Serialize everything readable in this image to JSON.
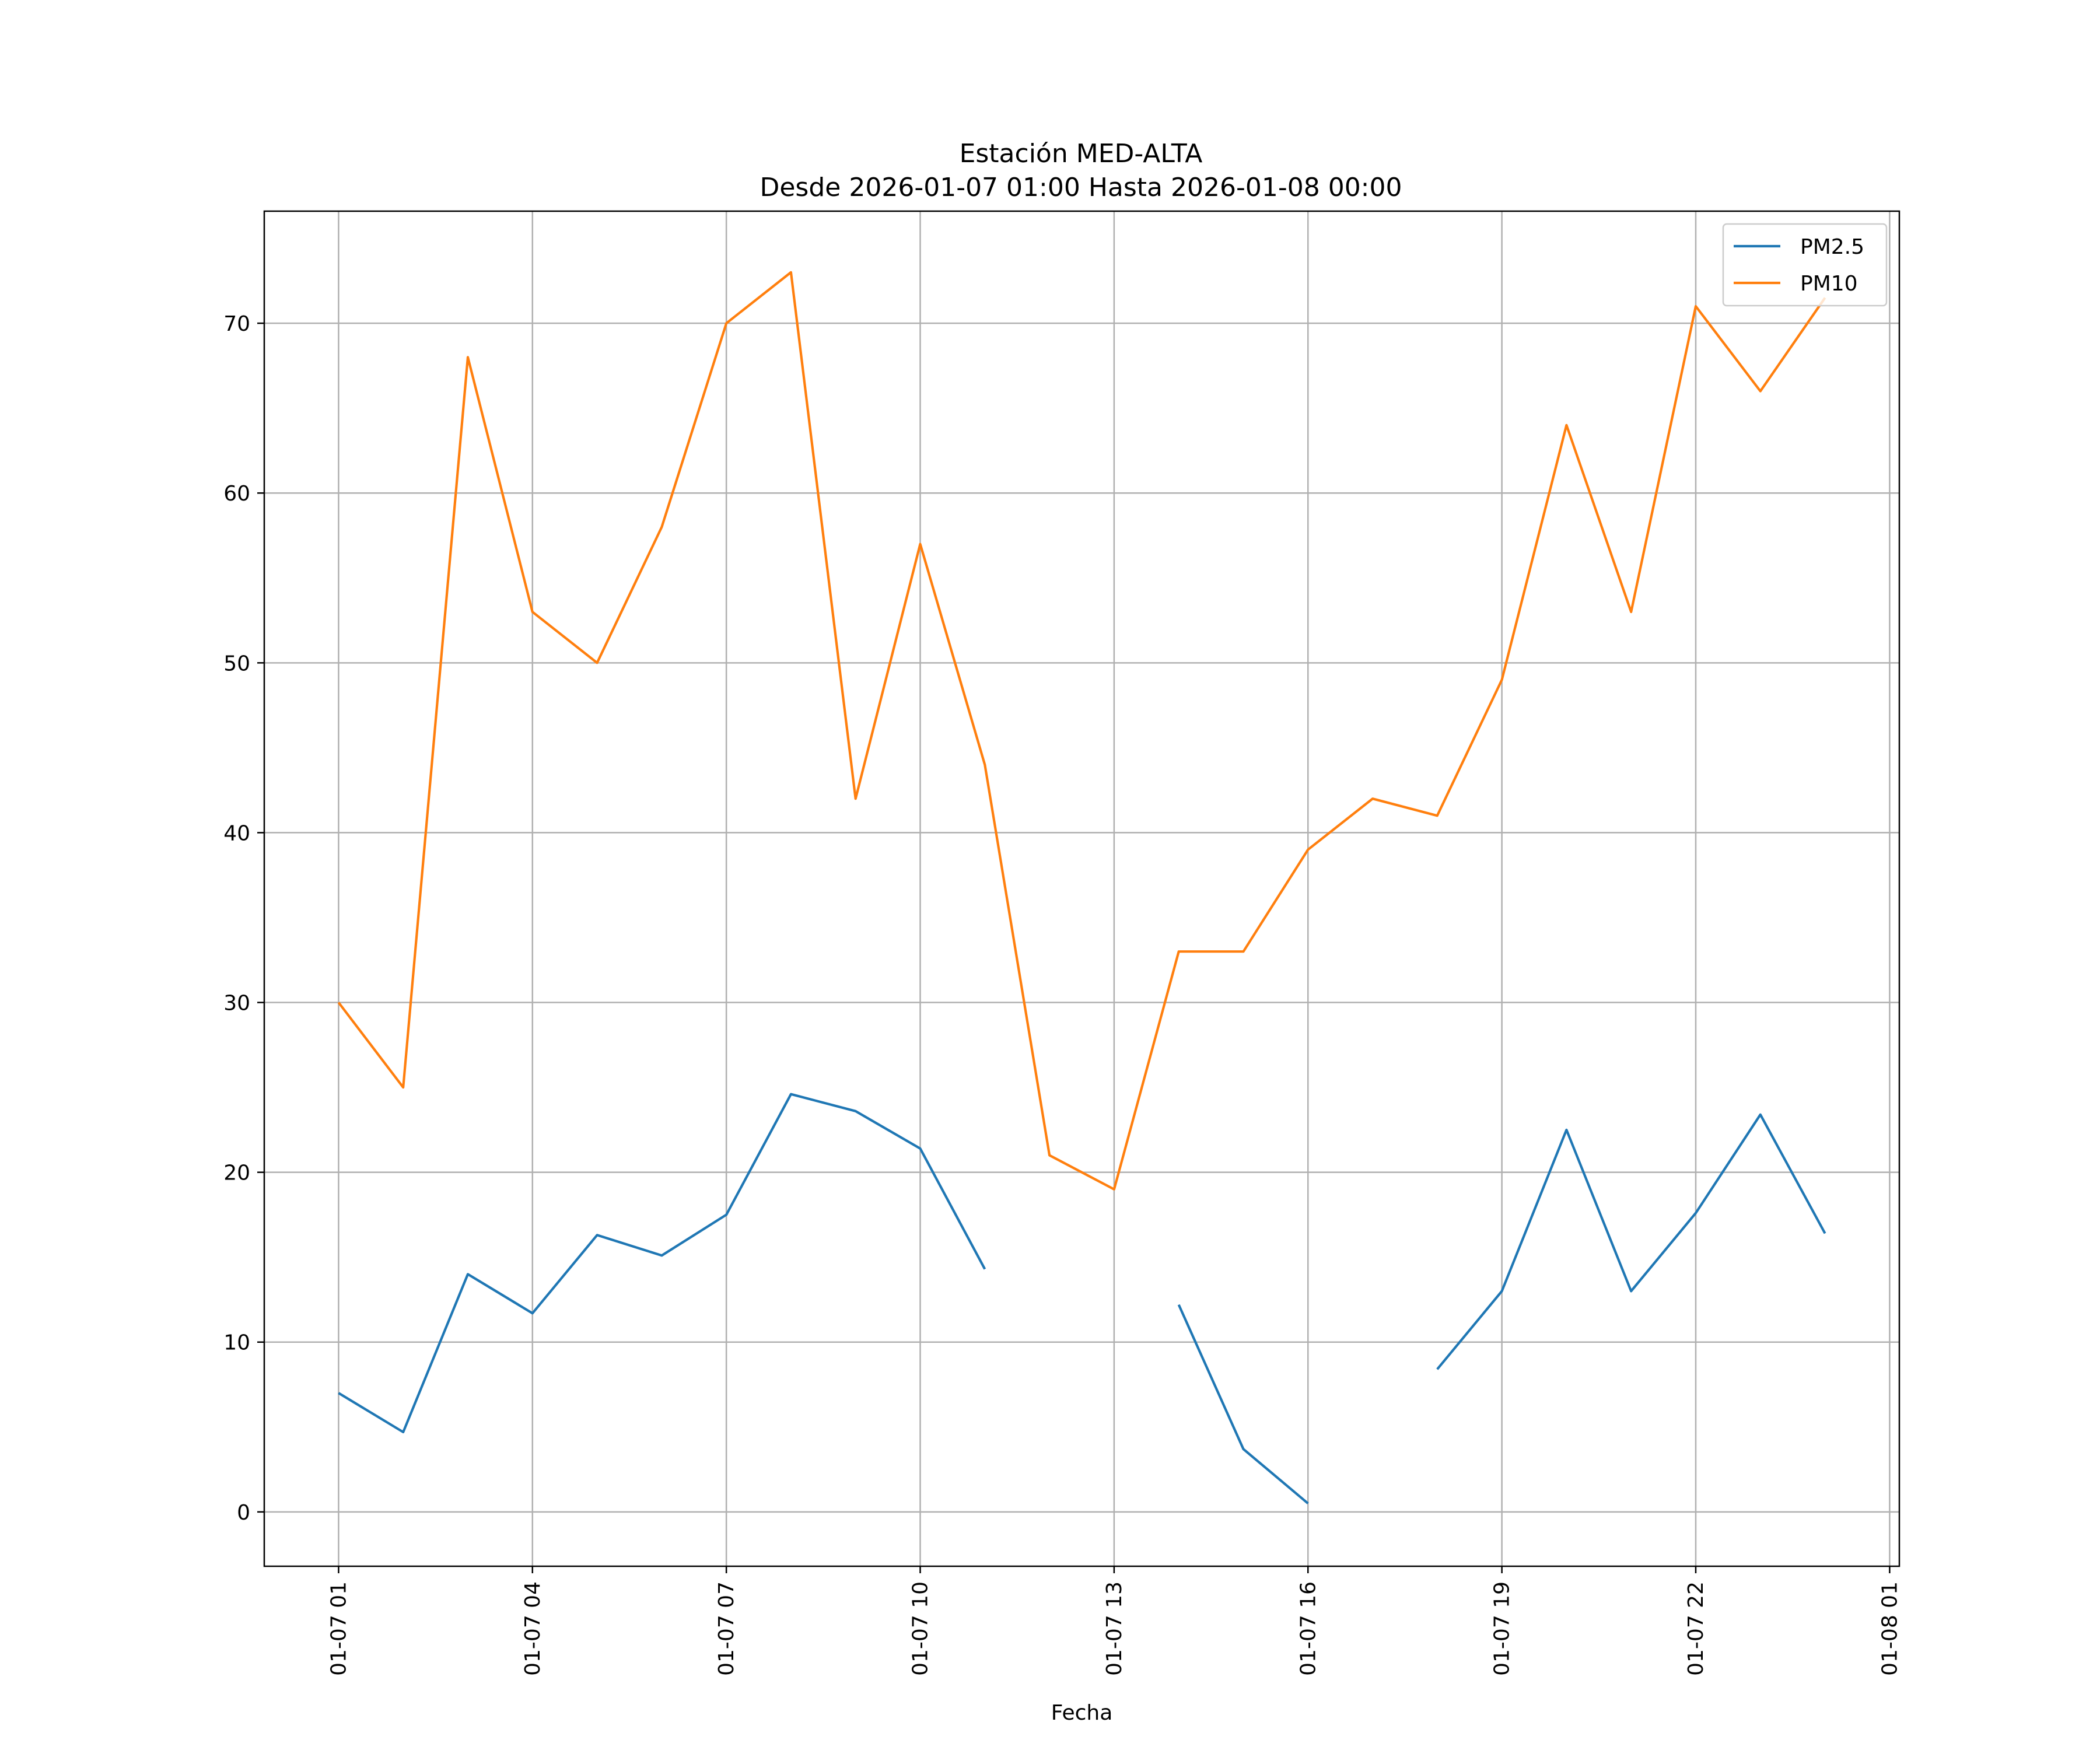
{
  "chart_data": {
    "type": "line",
    "title_line1": "Estación MED-ALTA",
    "title_line2": "Desde 2026-01-07 01:00 Hasta 2026-01-08 00:00",
    "xlabel": "Fecha",
    "ylabel": "",
    "grid": true,
    "legend_position": "top-right",
    "x_hours": [
      1,
      2,
      3,
      4,
      5,
      6,
      7,
      8,
      9,
      10,
      11,
      12,
      13,
      14,
      15,
      16,
      17,
      18,
      19,
      20,
      21,
      22,
      23,
      24
    ],
    "xlim": [
      -0.15,
      25.15
    ],
    "ylim": [
      -3.2,
      76.6
    ],
    "x_ticks": [
      {
        "hour": 1,
        "label": "01-07 01"
      },
      {
        "hour": 4,
        "label": "01-07 04"
      },
      {
        "hour": 7,
        "label": "01-07 07"
      },
      {
        "hour": 10,
        "label": "01-07 10"
      },
      {
        "hour": 13,
        "label": "01-07 13"
      },
      {
        "hour": 16,
        "label": "01-07 16"
      },
      {
        "hour": 19,
        "label": "01-07 19"
      },
      {
        "hour": 22,
        "label": "01-07 22"
      },
      {
        "hour": 25,
        "label": "01-08 01"
      }
    ],
    "y_ticks": [
      0,
      10,
      20,
      30,
      40,
      50,
      60,
      70
    ],
    "series": [
      {
        "name": "PM2.5",
        "color": "#1f77b4",
        "values": [
          7.0,
          4.7,
          14.0,
          11.7,
          16.3,
          15.1,
          17.5,
          24.6,
          23.6,
          21.4,
          14.3,
          null,
          null,
          12.2,
          3.7,
          0.5,
          null,
          8.4,
          13.0,
          22.5,
          13.0,
          17.6,
          23.4,
          16.4
        ]
      },
      {
        "name": "PM10",
        "color": "#ff7f0e",
        "values": [
          30,
          25,
          68,
          53,
          50,
          58,
          70,
          73,
          42,
          57,
          44,
          21,
          19,
          33,
          33,
          39,
          42,
          41,
          49,
          64,
          53,
          71,
          66,
          71.5
        ]
      }
    ]
  }
}
